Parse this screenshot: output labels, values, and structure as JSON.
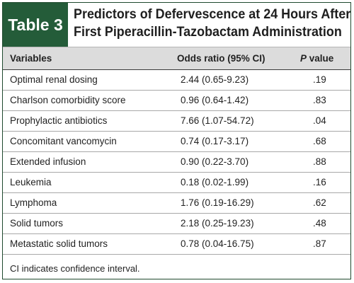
{
  "table_label": "Table 3",
  "title_lines": [
    "Predictors of Defervescence at 24 Hours After",
    "First Piperacillin-Tazobactam Administration"
  ],
  "columns": {
    "variables": "Variables",
    "odds_ratio": "Odds ratio (95% CI)",
    "p_prefix": "P",
    "p_suffix": " value"
  },
  "rows": [
    {
      "variable": "Optimal renal dosing",
      "odds_ratio": "2.44 (0.65-9.23)",
      "p": ".19"
    },
    {
      "variable": "Charlson comorbidity score",
      "odds_ratio": "0.96 (0.64-1.42)",
      "p": ".83"
    },
    {
      "variable": "Prophylactic antibiotics",
      "odds_ratio": "7.66 (1.07-54.72)",
      "p": ".04"
    },
    {
      "variable": "Concomitant vancomycin",
      "odds_ratio": "0.74 (0.17-3.17)",
      "p": ".68"
    },
    {
      "variable": "Extended infusion",
      "odds_ratio": "0.90 (0.22-3.70)",
      "p": ".88"
    },
    {
      "variable": "Leukemia",
      "odds_ratio": "0.18 (0.02-1.99)",
      "p": ".16"
    },
    {
      "variable": "Lymphoma",
      "odds_ratio": "1.76 (0.19-16.29)",
      "p": ".62"
    },
    {
      "variable": "Solid tumors",
      "odds_ratio": "2.18 (0.25-19.23)",
      "p": ".48"
    },
    {
      "variable": "Metastatic solid tumors",
      "odds_ratio": "0.78 (0.04-16.75)",
      "p": ".87"
    }
  ],
  "footnote": "CI indicates confidence interval.",
  "colors": {
    "accent": "#245c39",
    "header_bg": "#dcdcdc"
  }
}
